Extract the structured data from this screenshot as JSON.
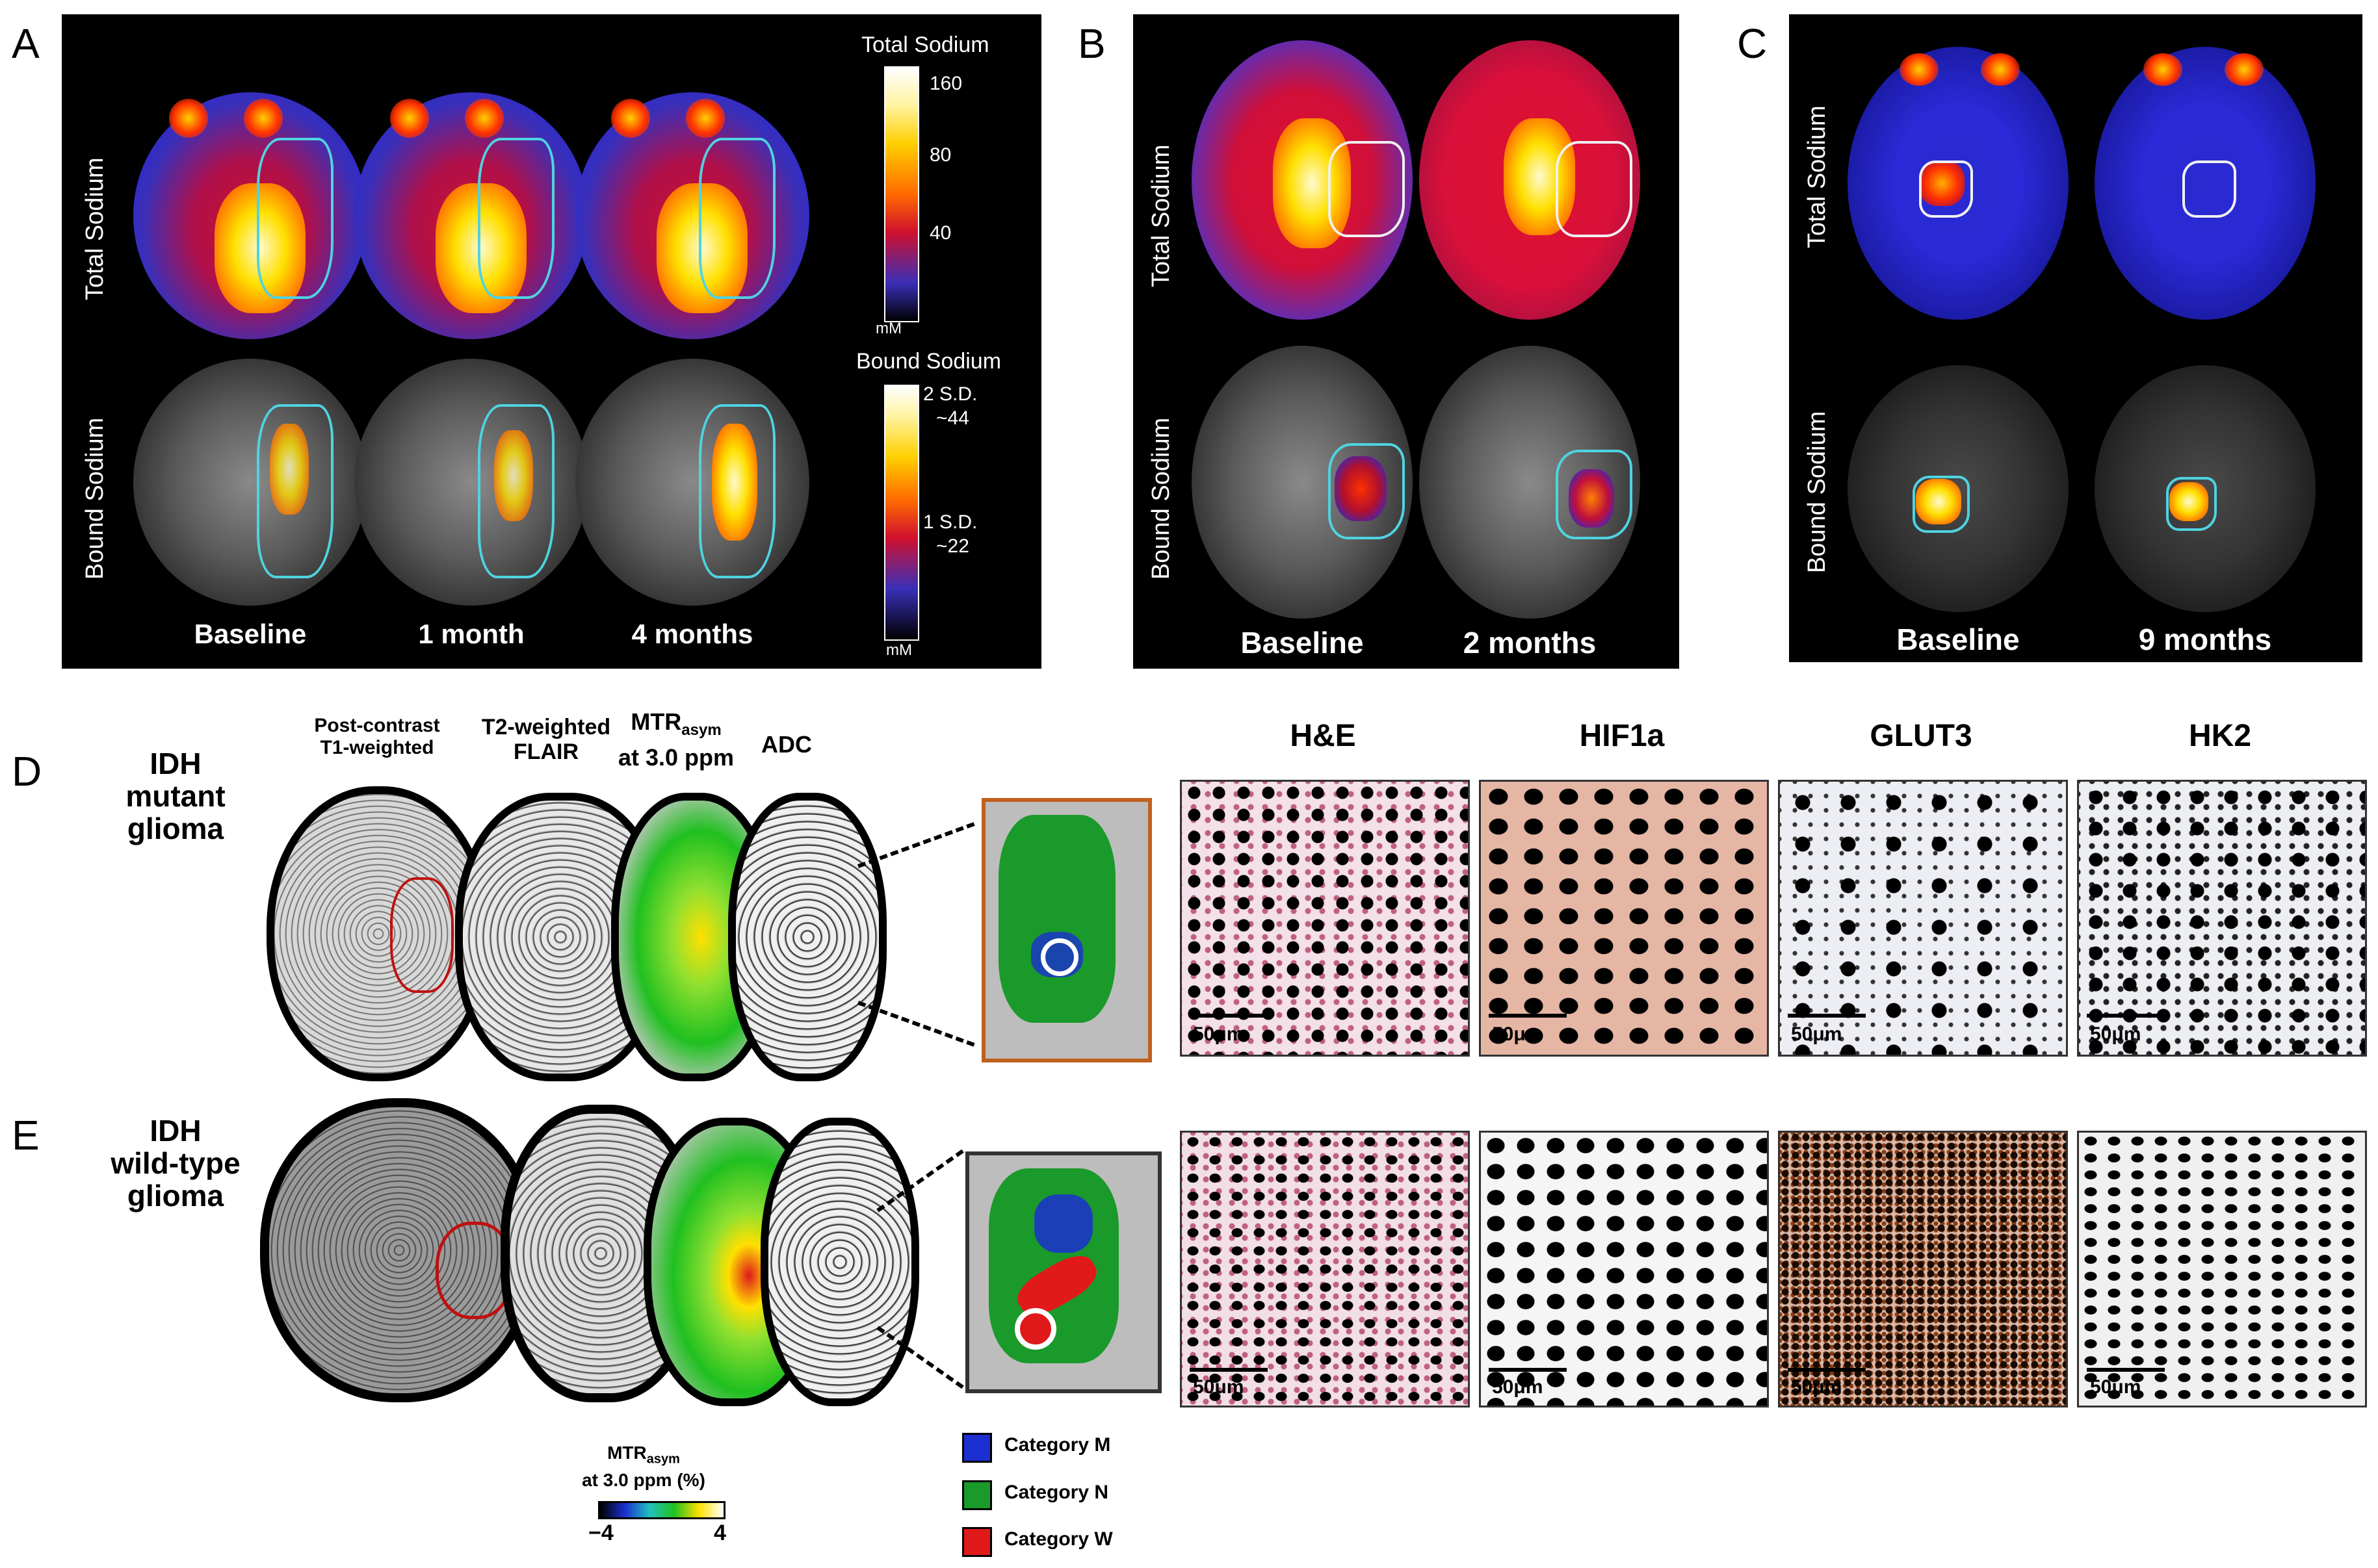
{
  "panels": {
    "A": {
      "letter": "A",
      "row_labels": [
        "Total Sodium",
        "Bound Sodium"
      ],
      "timepoints": [
        "Baseline",
        "1 month",
        "4 months"
      ],
      "colorbar_total": {
        "title": "Total Sodium",
        "ticks": [
          "160",
          "80",
          "40"
        ],
        "unit": "mM"
      },
      "colorbar_bound": {
        "title": "Bound Sodium",
        "ticks_top": [
          "2 S.D.",
          "~44"
        ],
        "ticks_mid": [
          "1 S.D.",
          "~22"
        ],
        "unit": "mM"
      }
    },
    "B": {
      "letter": "B",
      "row_labels": [
        "Total Sodium",
        "Bound Sodium"
      ],
      "timepoints": [
        "Baseline",
        "2 months"
      ]
    },
    "C": {
      "letter": "C",
      "row_labels": [
        "Total Sodium",
        "Bound Sodium"
      ],
      "timepoints": [
        "Baseline",
        "9 months"
      ]
    },
    "D": {
      "letter": "D",
      "row_title": [
        "IDH",
        "mutant",
        "glioma"
      ]
    },
    "E": {
      "letter": "E",
      "row_title": [
        "IDH",
        "wild-type",
        "glioma"
      ]
    }
  },
  "mri_headers": {
    "post_contrast": [
      "Post-contrast",
      "T1-weighted"
    ],
    "t2": [
      "T2-weighted",
      "FLAIR"
    ],
    "mtr": [
      "MTR",
      "asym",
      "at 3.0 ppm"
    ],
    "adc": "ADC"
  },
  "histology_headers": [
    "H&E",
    "HIF1a",
    "GLUT3",
    "HK2"
  ],
  "scale_label": "50μm",
  "mtr_colorbar": {
    "title_main": "MTR",
    "title_sub": "asym",
    "title_line2": "at 3.0 ppm (%)",
    "min": "−4",
    "max": "4"
  },
  "legend": [
    {
      "label": "Category M",
      "color": "#1c2fd0"
    },
    {
      "label": "Category N",
      "color": "#1a9a2a"
    },
    {
      "label": "Category W",
      "color": "#e01a1a"
    }
  ]
}
